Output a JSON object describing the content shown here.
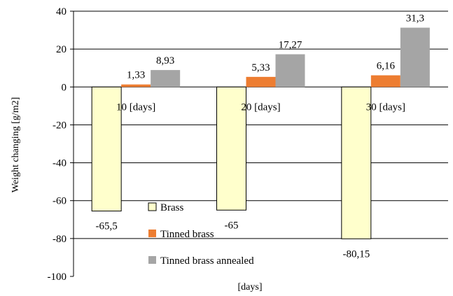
{
  "chart_data": {
    "type": "bar",
    "title": "",
    "xlabel": "[days]",
    "ylabel": "Weight changing [g/m2]",
    "ylim": [
      -100,
      40
    ],
    "yticks": [
      40,
      20,
      0,
      -20,
      -40,
      -60,
      -80,
      -100
    ],
    "grid": true,
    "legend_position": "bottom-center",
    "categories": [
      "10 [days]",
      "20 [days]",
      "30 [days]"
    ],
    "series": [
      {
        "name": "Brass",
        "values": [
          -65.5,
          -65,
          -80.15
        ],
        "labels": [
          "-65,5",
          "-65",
          "-80,15"
        ],
        "color": "#FFFFCC",
        "stroke": "#000000"
      },
      {
        "name": "Tinned brass",
        "values": [
          1.33,
          5.33,
          6.16
        ],
        "labels": [
          "1,33",
          "5,33",
          "6,16"
        ],
        "color": "#ED7D31",
        "stroke": "none"
      },
      {
        "name": "Tinned brass annealed",
        "values": [
          8.93,
          17.27,
          31.3
        ],
        "labels": [
          "8,93",
          "17,27",
          "31,3"
        ],
        "color": "#A5A5A5",
        "stroke": "none"
      }
    ]
  }
}
